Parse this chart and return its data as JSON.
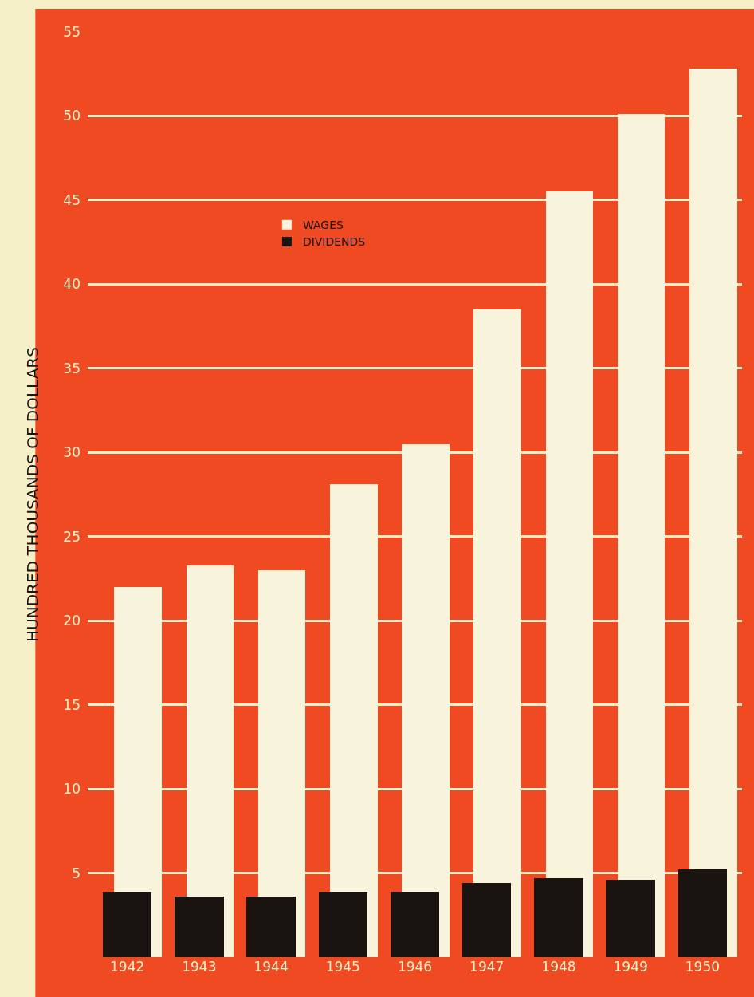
{
  "chart_data": {
    "type": "bar",
    "ylabel": "HUNDRED THOUSANDS OF DOLLARS",
    "categories": [
      "1942",
      "1943",
      "1944",
      "1945",
      "1946",
      "1947",
      "1948",
      "1949",
      "1950"
    ],
    "series": [
      {
        "name": "WAGES",
        "color": "#f8f4dc",
        "values": [
          22.0,
          23.3,
          23.0,
          28.1,
          30.5,
          38.5,
          45.5,
          50.1,
          52.8
        ]
      },
      {
        "name": "DIVIDENDS",
        "color": "#1a1410",
        "values": [
          3.9,
          3.6,
          3.6,
          3.9,
          3.9,
          4.4,
          4.7,
          4.6,
          5.2
        ]
      }
    ],
    "ylim": [
      0,
      55
    ],
    "yticks": [
      5,
      10,
      15,
      20,
      25,
      30,
      35,
      40,
      45,
      50,
      55
    ],
    "grid": "y",
    "legend": "top left"
  }
}
